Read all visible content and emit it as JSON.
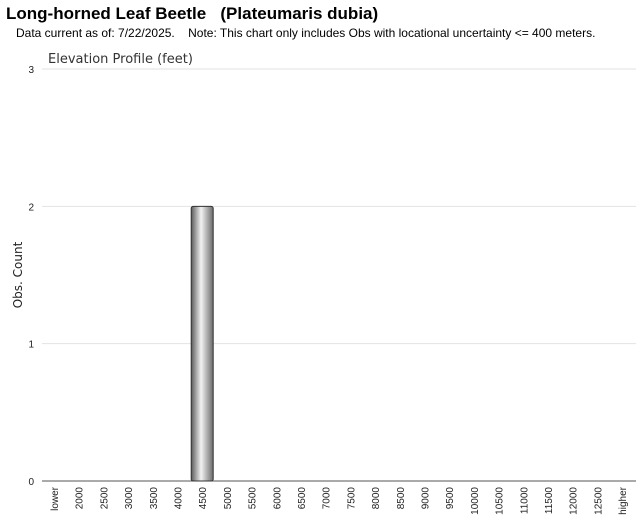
{
  "header": {
    "title": "Long-horned Leaf Beetle   (Plateumaris dubia)",
    "subtitle": "Data current as of: 7/22/2025.    Note: This chart only includes Obs with locational uncertainty <= 400 meters."
  },
  "chart_data": {
    "type": "bar",
    "title": "Elevation Profile (feet)",
    "xlabel": "",
    "ylabel": "Obs. Count",
    "ylim": [
      0,
      3
    ],
    "yticks": [
      "0",
      "1",
      "2",
      "3"
    ],
    "categories": [
      "lower",
      "2000",
      "2500",
      "3000",
      "3500",
      "4000",
      "4500",
      "5000",
      "5500",
      "6000",
      "6500",
      "7000",
      "7500",
      "8000",
      "8500",
      "9000",
      "9500",
      "10000",
      "10500",
      "11000",
      "11500",
      "12000",
      "12500",
      "higher"
    ],
    "values": [
      0,
      0,
      0,
      0,
      0,
      0,
      2,
      0,
      0,
      0,
      0,
      0,
      0,
      0,
      0,
      0,
      0,
      0,
      0,
      0,
      0,
      0,
      0,
      0
    ],
    "grid": true,
    "legend": "none"
  }
}
